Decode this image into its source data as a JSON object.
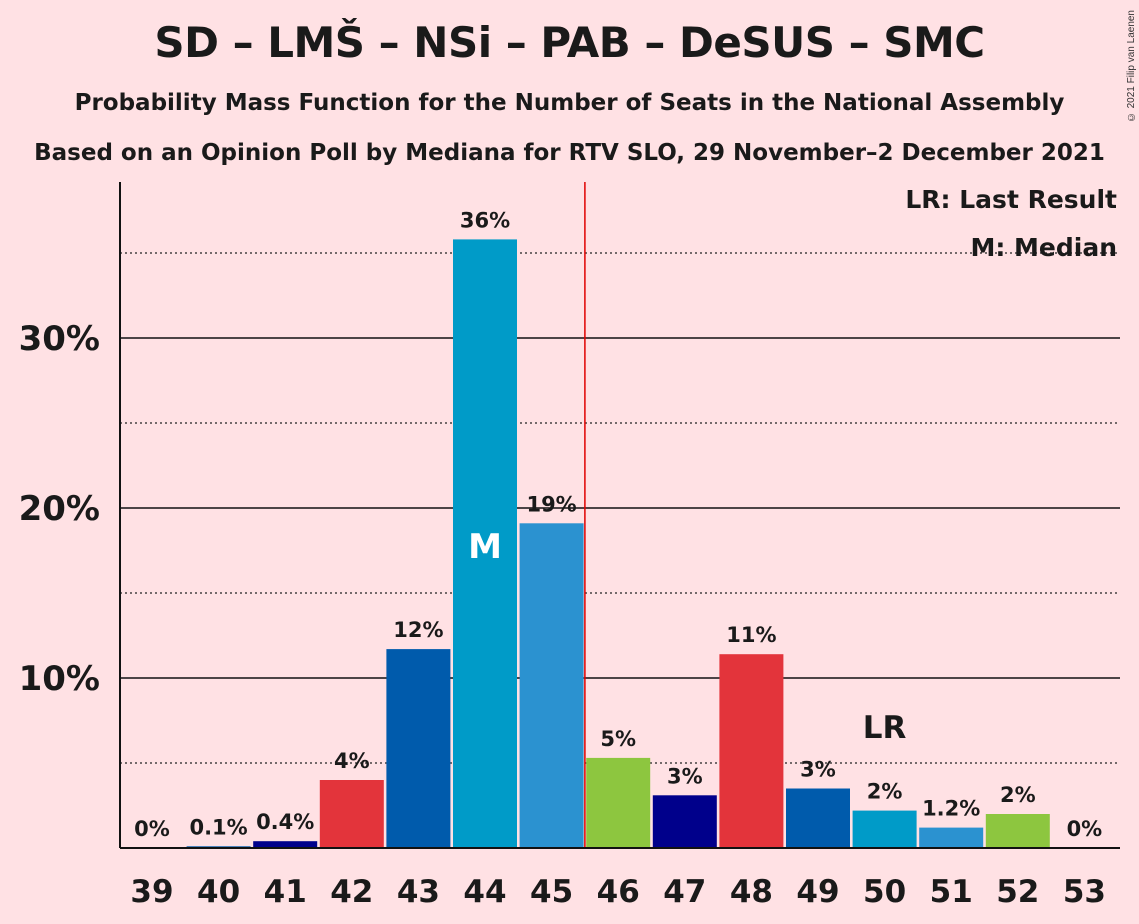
{
  "title": "SD – LMŠ – NSi – PAB – DeSUS – SMC",
  "subtitle1": "Probability Mass Function for the Number of Seats in the National Assembly",
  "subtitle2": "Based on an Opinion Poll by Mediana for RTV SLO, 29 November–2 December 2021",
  "copyright": "© 2021 Filip van Laenen",
  "legend": {
    "lr": "LR: Last Result",
    "m": "M: Median"
  },
  "chart_data": {
    "type": "bar",
    "categories": [
      "39",
      "40",
      "41",
      "42",
      "43",
      "44",
      "45",
      "46",
      "47",
      "48",
      "49",
      "50",
      "51",
      "52",
      "53"
    ],
    "values": [
      0,
      0.1,
      0.4,
      4,
      11.7,
      35.8,
      19.1,
      5.3,
      3.1,
      11.4,
      3.5,
      2.2,
      1.2,
      2,
      0
    ],
    "labels": [
      "0%",
      "0.1%",
      "0.4%",
      "4%",
      "12%",
      "36%",
      "19%",
      "5%",
      "3%",
      "11%",
      "3%",
      "2%",
      "1.2%",
      "2%",
      "0%"
    ],
    "colors": [
      "#005BAC",
      "#005BAC",
      "#00008B",
      "#E3343B",
      "#005BAC",
      "#009BC8",
      "#2B92D0",
      "#8DC63F",
      "#00008B",
      "#E3343B",
      "#005BAC",
      "#009BC8",
      "#2B92D0",
      "#8DC63F",
      "#005BAC"
    ],
    "ylim": [
      0,
      39
    ],
    "yticks": [
      10,
      20,
      30
    ],
    "ytick_labels": [
      "10%",
      "20%",
      "30%"
    ],
    "minor_gridlines": [
      5,
      15,
      25,
      35
    ],
    "median_seat": "44",
    "median_marker": "M",
    "last_result_seat": "50",
    "last_result_marker": "LR",
    "majority_line_after_seat": "45"
  }
}
